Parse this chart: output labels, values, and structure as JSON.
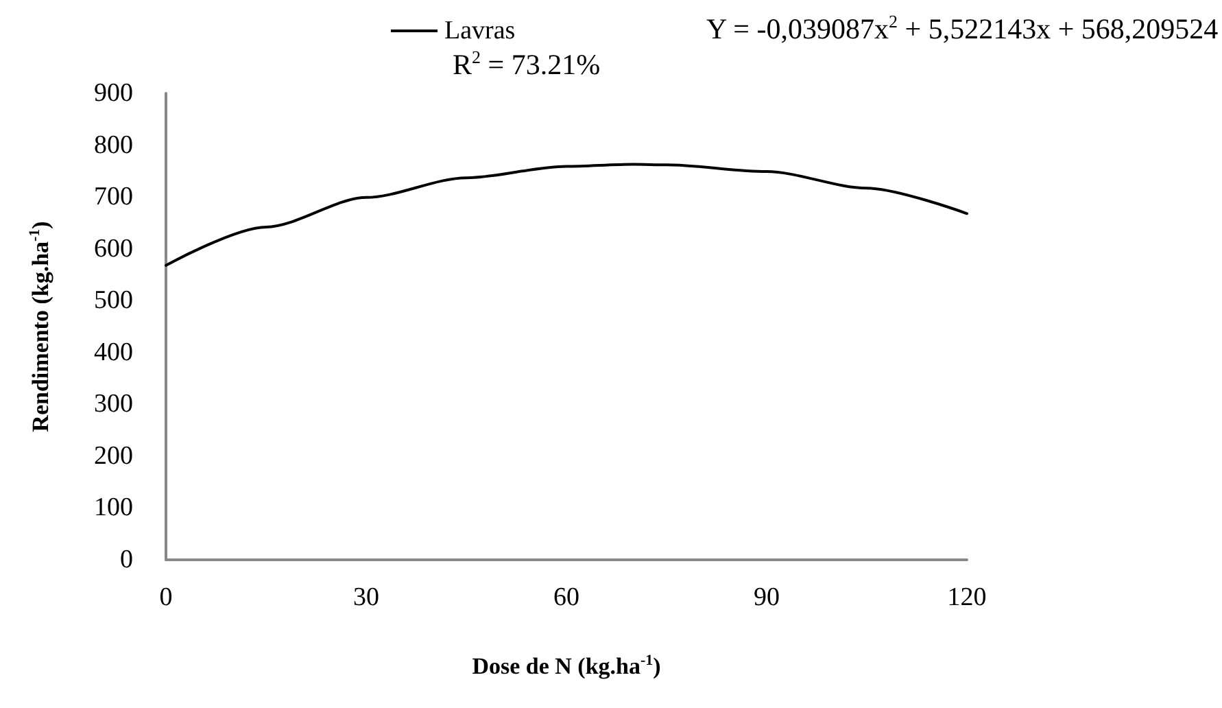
{
  "chart_data": {
    "type": "line",
    "xlabel": "Dose de N (kg.ha$^{-1}$)",
    "ylabel": "Rendimento (kg.ha$^{-1}$)",
    "annotations": [
      "Y = -0,039087x$^{2}$ + 5,522143x + 568,209524",
      "R$^{2}$ = 73.21%"
    ],
    "series": [
      {
        "name": "Lavras",
        "color": "#000000",
        "x": [
          0,
          15,
          30,
          45,
          60,
          70,
          75,
          90,
          105,
          120
        ],
        "values": [
          568,
          642,
          699,
          737,
          759,
          763,
          762,
          749,
          717,
          668
        ]
      }
    ],
    "xlim": [
      0,
      120
    ],
    "xticks": [
      0,
      30,
      60,
      90,
      120
    ],
    "ylim": [
      0,
      900
    ],
    "yticks": [
      0,
      100,
      200,
      300,
      400,
      500,
      600,
      700,
      800,
      900
    ],
    "grid": false,
    "legend": "top",
    "marker": "none",
    "line_style": "solid"
  }
}
